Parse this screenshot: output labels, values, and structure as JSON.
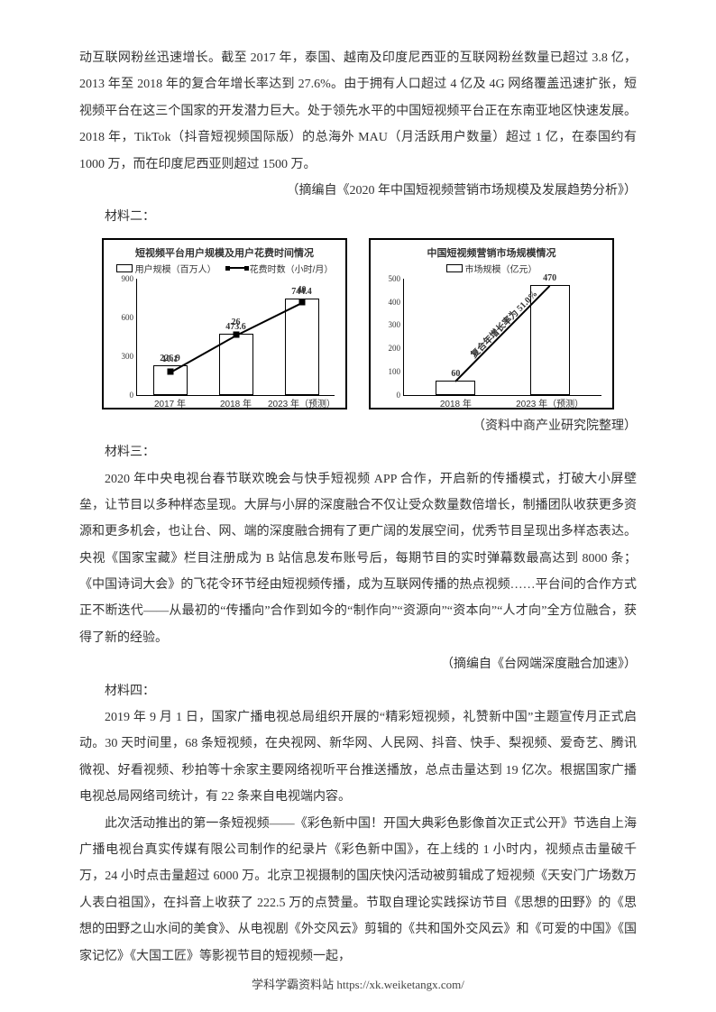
{
  "para1": "动互联网粉丝迅速增长。截至 2017 年，泰国、越南及印度尼西亚的互联网粉丝数量已超过 3.8 亿，2013 年至 2018 年的复合年增长率达到 27.6%。由于拥有人口超过 4 亿及 4G 网络覆盖迅速扩张，短视频平台在这三个国家的开发潜力巨大。处于领先水平的中国短视频平台正在东南亚地区快速发展。2018 年，TikTok（抖音短视频国际版）的总海外 MAU（月活跃用户数量）超过 1 亿，在泰国约有 1000 万，而在印度尼西亚则超过 1500 万。",
  "cite1": "（摘编自《2020 年中国短视频营销市场规模及发展趋势分析》）",
  "label2": "材料二：",
  "chartA": {
    "title": "短视频平台用户规模及用户花费时间情况",
    "legend_bar": "用户规模（百万人）",
    "legend_line": "花费时数（小时/月）",
    "yticks": [
      0,
      300,
      600,
      900
    ],
    "ylim": 900,
    "categories": [
      "2017 年",
      "2018 年",
      "2023 年（预测）"
    ],
    "bar_values": [
      226.9,
      473.6,
      744.4
    ],
    "line_values": [
      10.1,
      26,
      40
    ],
    "line_ylim": 50,
    "bar_labels": [
      "226.9",
      "473.6",
      "744.4"
    ],
    "line_labels": [
      "10.1",
      "26",
      "40"
    ]
  },
  "chartB": {
    "title": "中国短视频营销市场规模情况",
    "legend_bar": "市场规模（亿元）",
    "yticks": [
      0,
      100,
      200,
      300,
      400,
      500
    ],
    "ylim": 500,
    "categories": [
      "2018 年",
      "2023 年（预测）"
    ],
    "bar_values": [
      60,
      470
    ],
    "bar_labels": [
      "60",
      "470"
    ],
    "diag_label": "复合年增长率为 51.0%"
  },
  "cite2": "（资料中商产业研究院整理）",
  "label3": "材料三：",
  "para3": "2020 年中央电视台春节联欢晚会与快手短视频 APP 合作，开启新的传播模式，打破大小屏壁垒，让节目以多种样态呈现。大屏与小屏的深度融合不仅让受众数量数倍增长，制播团队收获更多资源和更多机会，也让台、网、端的深度融合拥有了更广阔的发展空间，优秀节目呈现出多样态表达。央视《国家宝藏》栏目注册成为 B 站信息发布账号后，每期节目的实时弹幕数最高达到 8000 条；《中国诗词大会》的飞花令环节经由短视频传播，成为互联网传播的热点视频……平台间的合作方式正不断迭代——从最初的“传播向”合作到如今的“制作向”“资源向”“资本向”“人才向”全方位融合，获得了新的经验。",
  "cite3": "（摘编自《台网端深度融合加速》）",
  "label4": "材料四：",
  "para4a": "2019 年 9 月 1 日，国家广播电视总局组织开展的“精彩短视频，礼赞新中国”主题宣传月正式启动。30 天时间里，68 条短视频，在央视网、新华网、人民网、抖音、快手、梨视频、爱奇艺、腾讯微视、好看视频、秒拍等十余家主要网络视听平台推送播放，总点击量达到 19 亿次。根据国家广播电视总局网络司统计，有 22 条来自电视端内容。",
  "para4b": "此次活动推出的第一条短视频——《彩色新中国！开国大典彩色影像首次正式公开》节选自上海广播电视台真实传媒有限公司制作的纪录片《彩色新中国》，在上线的 1 小时内，视频点击量破千万，24 小时点击量超过 6000 万。北京卫视摄制的国庆快闪活动被剪辑成了短视频《天安门广场数万人表白祖国》，在抖音上收获了 222.5 万的点赞量。节取自理论实践探访节目《思想的田野》的《思想的田野之山水间的美食》、从电视剧《外交风云》剪辑的《共和国外交风云》和《可爱的中国》《国家记忆》《大国工匠》等影视节目的短视频一起，",
  "footer": "学科学霸资料站 https://xk.weiketangx.com/"
}
